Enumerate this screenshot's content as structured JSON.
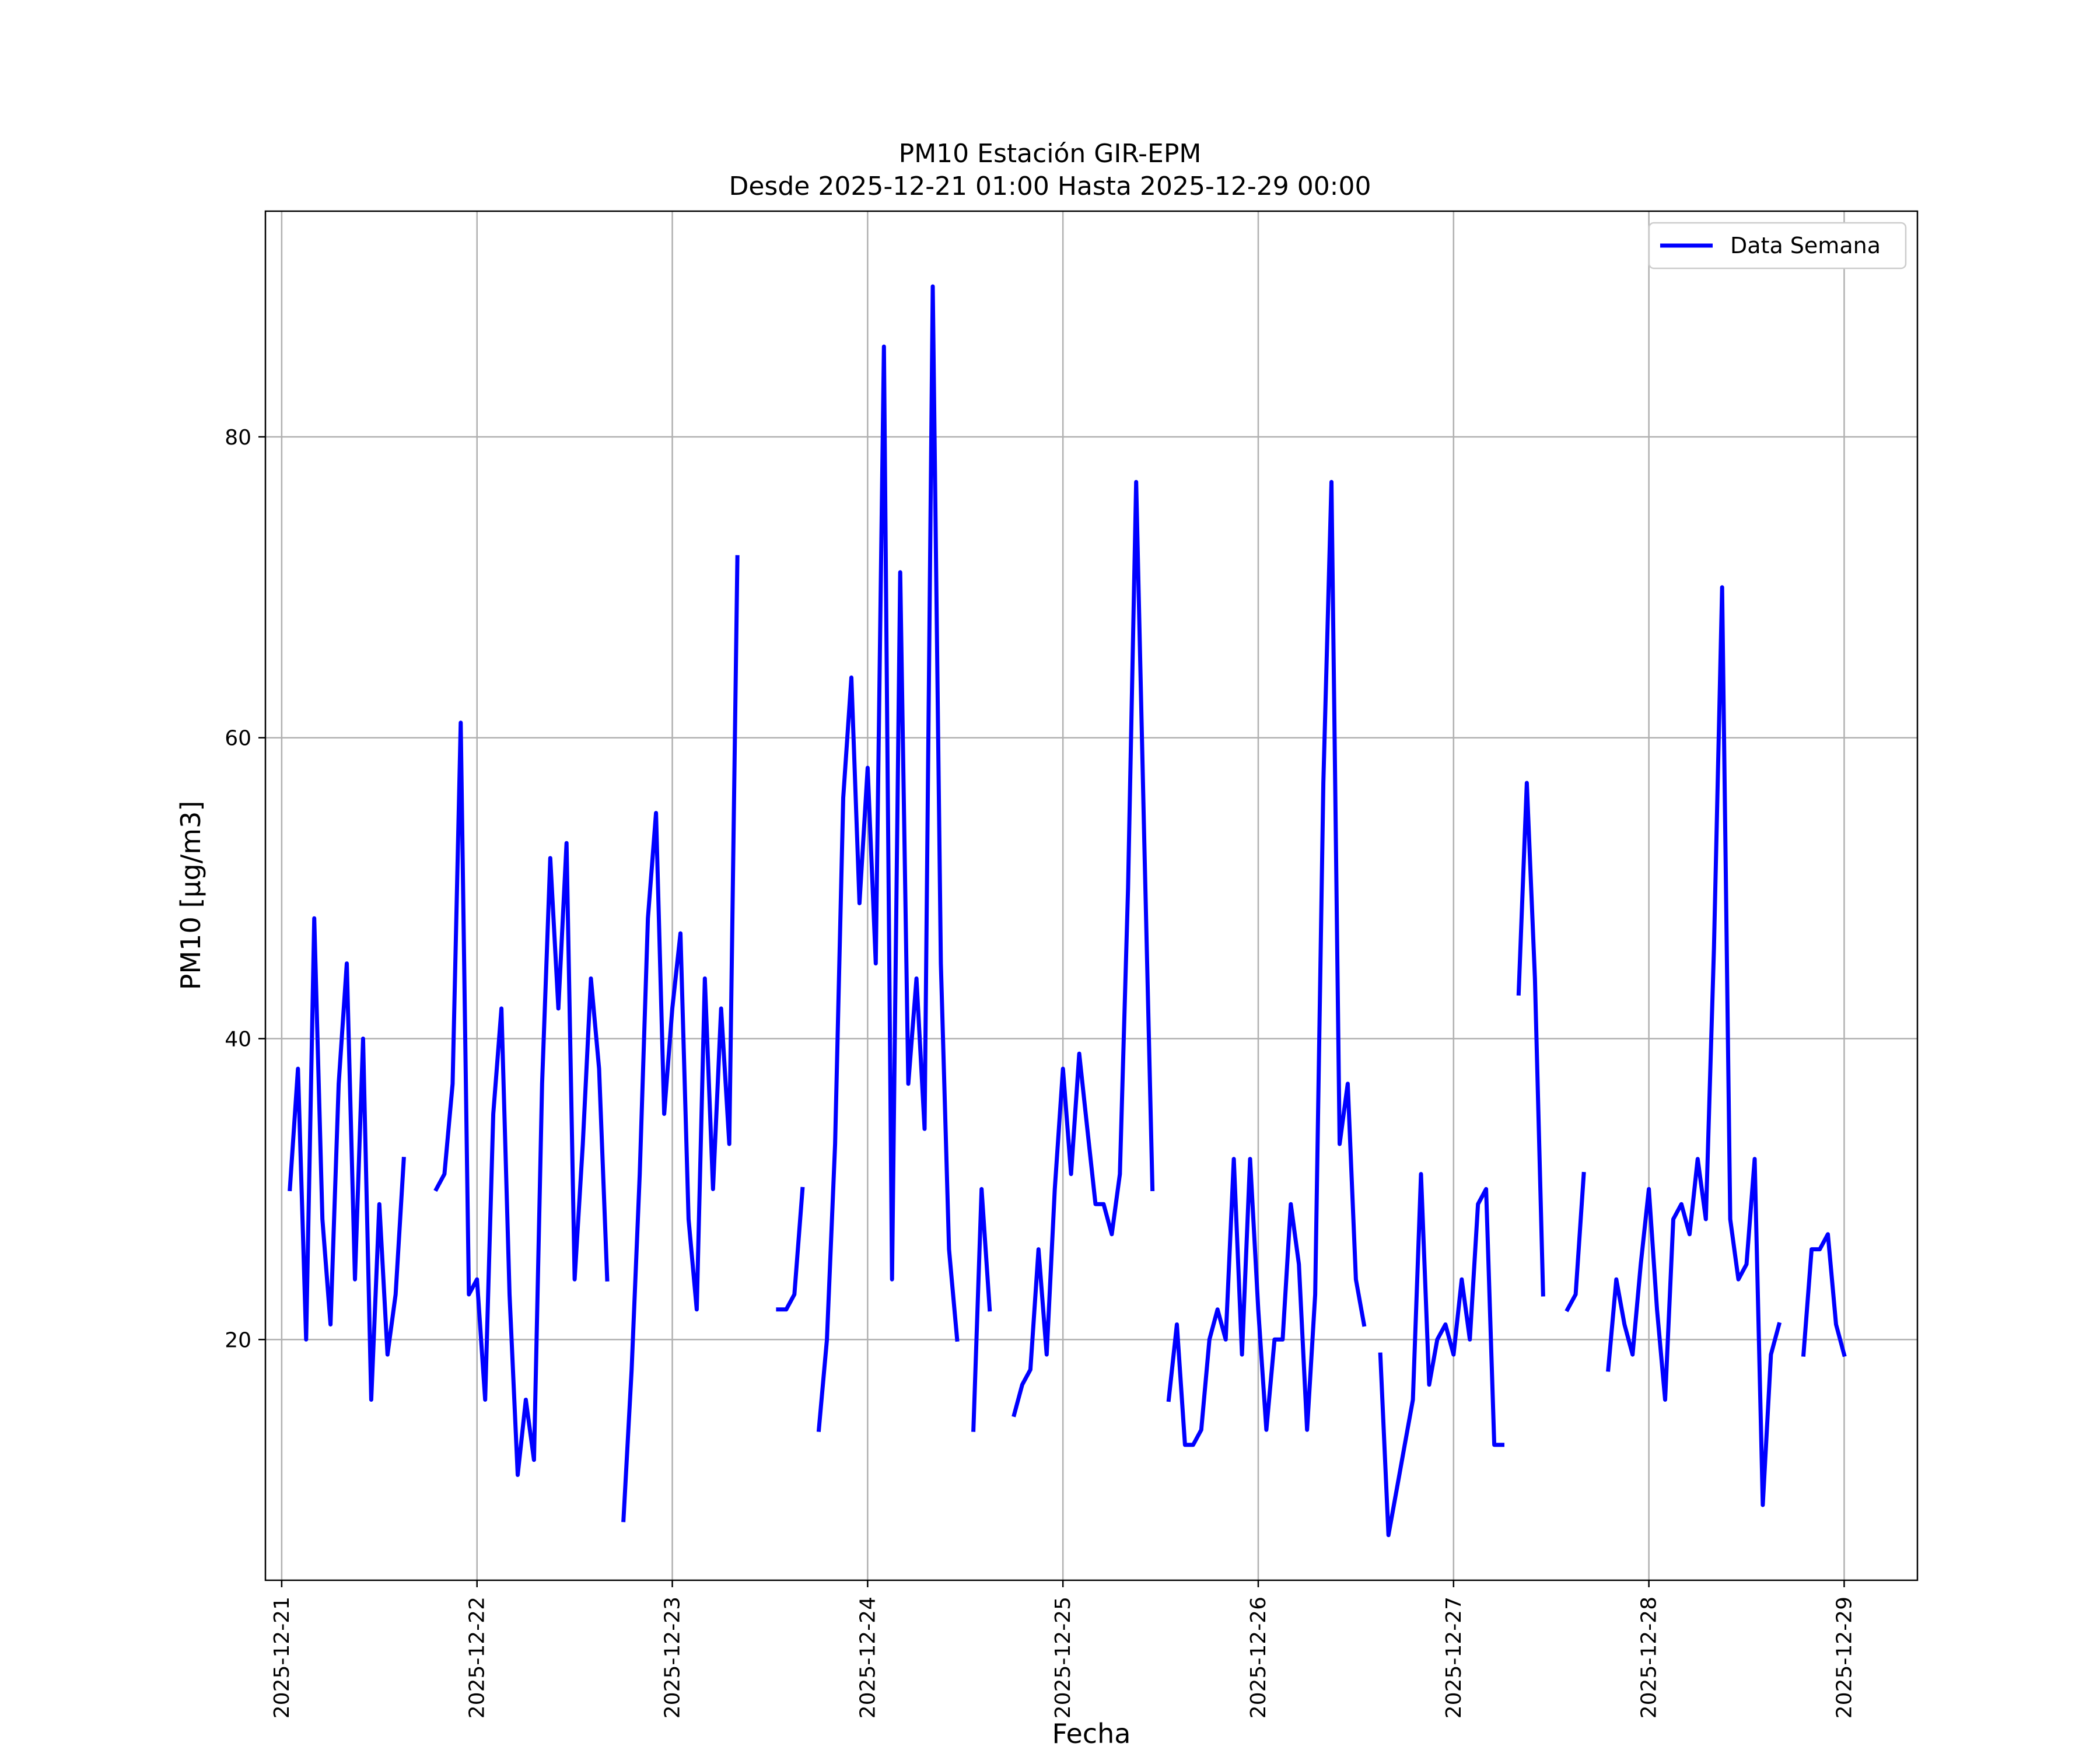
{
  "chart_data": {
    "type": "line",
    "title": "PM10 Estación GIR-EPM",
    "subtitle": "Desde 2025-12-21 01:00 Hasta 2025-12-29 00:00",
    "xlabel": "Fecha",
    "ylabel": "PM10 [μg/m3]",
    "xlim": [
      "2025-12-20 22:00",
      "2025-12-29 09:00"
    ],
    "ylim": [
      4,
      95
    ],
    "yticks": [
      20,
      40,
      60,
      80
    ],
    "xticks": [
      "2025-12-21",
      "2025-12-22",
      "2025-12-23",
      "2025-12-24",
      "2025-12-25",
      "2025-12-26",
      "2025-12-27",
      "2025-12-28",
      "2025-12-29"
    ],
    "grid": true,
    "legend_position": "top-right",
    "series_color": "#0000ff",
    "series": [
      {
        "name": "Data Semana",
        "segments": [
          [
            [
              "2025-12-21 01:00",
              30
            ],
            [
              "2025-12-21 02:00",
              38
            ],
            [
              "2025-12-21 03:00",
              20
            ],
            [
              "2025-12-21 04:00",
              48
            ],
            [
              "2025-12-21 05:00",
              28
            ],
            [
              "2025-12-21 06:00",
              21
            ],
            [
              "2025-12-21 07:00",
              37
            ],
            [
              "2025-12-21 08:00",
              45
            ],
            [
              "2025-12-21 09:00",
              24
            ],
            [
              "2025-12-21 10:00",
              40
            ],
            [
              "2025-12-21 11:00",
              16
            ],
            [
              "2025-12-21 12:00",
              29
            ],
            [
              "2025-12-21 13:00",
              19
            ],
            [
              "2025-12-21 14:00",
              23
            ],
            [
              "2025-12-21 15:00",
              32
            ]
          ],
          [
            [
              "2025-12-21 19:00",
              30
            ],
            [
              "2025-12-21 20:00",
              31
            ],
            [
              "2025-12-21 21:00",
              37
            ],
            [
              "2025-12-21 22:00",
              61
            ],
            [
              "2025-12-21 23:00",
              23
            ],
            [
              "2025-12-22 00:00",
              24
            ],
            [
              "2025-12-22 01:00",
              16
            ],
            [
              "2025-12-22 02:00",
              35
            ],
            [
              "2025-12-22 03:00",
              42
            ],
            [
              "2025-12-22 04:00",
              23
            ],
            [
              "2025-12-22 05:00",
              11
            ],
            [
              "2025-12-22 06:00",
              16
            ],
            [
              "2025-12-22 07:00",
              12
            ],
            [
              "2025-12-22 08:00",
              37
            ],
            [
              "2025-12-22 09:00",
              52
            ],
            [
              "2025-12-22 10:00",
              42
            ],
            [
              "2025-12-22 11:00",
              53
            ],
            [
              "2025-12-22 12:00",
              24
            ],
            [
              "2025-12-22 13:00",
              33
            ],
            [
              "2025-12-22 14:00",
              44
            ],
            [
              "2025-12-22 15:00",
              38
            ],
            [
              "2025-12-22 16:00",
              24
            ]
          ],
          [
            [
              "2025-12-22 18:00",
              8
            ],
            [
              "2025-12-22 19:00",
              18
            ],
            [
              "2025-12-22 20:00",
              31
            ],
            [
              "2025-12-22 21:00",
              48
            ],
            [
              "2025-12-22 22:00",
              55
            ],
            [
              "2025-12-22 23:00",
              35
            ],
            [
              "2025-12-23 00:00",
              42
            ],
            [
              "2025-12-23 01:00",
              47
            ],
            [
              "2025-12-23 02:00",
              28
            ],
            [
              "2025-12-23 03:00",
              22
            ],
            [
              "2025-12-23 04:00",
              44
            ],
            [
              "2025-12-23 05:00",
              30
            ],
            [
              "2025-12-23 06:00",
              42
            ],
            [
              "2025-12-23 07:00",
              33
            ],
            [
              "2025-12-23 08:00",
              72
            ]
          ],
          [
            [
              "2025-12-23 13:00",
              22
            ],
            [
              "2025-12-23 14:00",
              22
            ],
            [
              "2025-12-23 15:00",
              23
            ],
            [
              "2025-12-23 16:00",
              30
            ]
          ],
          [
            [
              "2025-12-23 18:00",
              14
            ],
            [
              "2025-12-23 19:00",
              20
            ],
            [
              "2025-12-23 20:00",
              33
            ],
            [
              "2025-12-23 21:00",
              56
            ],
            [
              "2025-12-23 22:00",
              64
            ],
            [
              "2025-12-23 23:00",
              49
            ],
            [
              "2025-12-24 00:00",
              58
            ],
            [
              "2025-12-24 01:00",
              45
            ],
            [
              "2025-12-24 02:00",
              86
            ],
            [
              "2025-12-24 03:00",
              24
            ],
            [
              "2025-12-24 04:00",
              71
            ],
            [
              "2025-12-24 05:00",
              37
            ],
            [
              "2025-12-24 06:00",
              44
            ],
            [
              "2025-12-24 07:00",
              34
            ],
            [
              "2025-12-24 08:00",
              90
            ],
            [
              "2025-12-24 09:00",
              45
            ],
            [
              "2025-12-24 10:00",
              26
            ],
            [
              "2025-12-24 11:00",
              20
            ]
          ],
          [
            [
              "2025-12-24 13:00",
              14
            ],
            [
              "2025-12-24 14:00",
              30
            ],
            [
              "2025-12-24 15:00",
              22
            ]
          ],
          [
            [
              "2025-12-24 18:00",
              15
            ],
            [
              "2025-12-24 19:00",
              17
            ],
            [
              "2025-12-24 20:00",
              18
            ],
            [
              "2025-12-24 21:00",
              26
            ],
            [
              "2025-12-24 22:00",
              19
            ],
            [
              "2025-12-24 23:00",
              30
            ],
            [
              "2025-12-25 00:00",
              38
            ],
            [
              "2025-12-25 01:00",
              31
            ],
            [
              "2025-12-25 02:00",
              39
            ],
            [
              "2025-12-25 03:00",
              34
            ],
            [
              "2025-12-25 04:00",
              29
            ],
            [
              "2025-12-25 05:00",
              29
            ],
            [
              "2025-12-25 06:00",
              27
            ],
            [
              "2025-12-25 07:00",
              31
            ],
            [
              "2025-12-25 08:00",
              50
            ],
            [
              "2025-12-25 09:00",
              77
            ],
            [
              "2025-12-25 10:00",
              53
            ],
            [
              "2025-12-25 11:00",
              30
            ]
          ],
          [
            [
              "2025-12-25 13:00",
              16
            ],
            [
              "2025-12-25 14:00",
              21
            ],
            [
              "2025-12-25 15:00",
              13
            ],
            [
              "2025-12-25 16:00",
              13
            ],
            [
              "2025-12-25 17:00",
              14
            ],
            [
              "2025-12-25 18:00",
              20
            ],
            [
              "2025-12-25 19:00",
              22
            ],
            [
              "2025-12-25 20:00",
              20
            ],
            [
              "2025-12-25 21:00",
              32
            ],
            [
              "2025-12-25 22:00",
              19
            ],
            [
              "2025-12-25 23:00",
              32
            ],
            [
              "2025-12-26 00:00",
              22
            ],
            [
              "2025-12-26 01:00",
              14
            ],
            [
              "2025-12-26 02:00",
              20
            ],
            [
              "2025-12-26 03:00",
              20
            ],
            [
              "2025-12-26 04:00",
              29
            ],
            [
              "2025-12-26 05:00",
              25
            ],
            [
              "2025-12-26 06:00",
              14
            ],
            [
              "2025-12-26 07:00",
              23
            ],
            [
              "2025-12-26 08:00",
              57
            ],
            [
              "2025-12-26 09:00",
              77
            ],
            [
              "2025-12-26 10:00",
              33
            ],
            [
              "2025-12-26 11:00",
              37
            ],
            [
              "2025-12-26 12:00",
              24
            ],
            [
              "2025-12-26 13:00",
              21
            ]
          ],
          [
            [
              "2025-12-26 15:00",
              19
            ],
            [
              "2025-12-26 16:00",
              7
            ],
            [
              "2025-12-26 17:00",
              10
            ],
            [
              "2025-12-26 18:00",
              13
            ],
            [
              "2025-12-26 19:00",
              16
            ],
            [
              "2025-12-26 20:00",
              31
            ],
            [
              "2025-12-26 21:00",
              17
            ],
            [
              "2025-12-26 22:00",
              20
            ],
            [
              "2025-12-26 23:00",
              21
            ],
            [
              "2025-12-27 00:00",
              19
            ],
            [
              "2025-12-27 01:00",
              24
            ],
            [
              "2025-12-27 02:00",
              20
            ],
            [
              "2025-12-27 03:00",
              29
            ],
            [
              "2025-12-27 04:00",
              30
            ],
            [
              "2025-12-27 05:00",
              13
            ],
            [
              "2025-12-27 06:00",
              13
            ]
          ],
          [
            [
              "2025-12-27 08:00",
              43
            ],
            [
              "2025-12-27 09:00",
              57
            ],
            [
              "2025-12-27 10:00",
              44
            ],
            [
              "2025-12-27 11:00",
              23
            ]
          ],
          [
            [
              "2025-12-27 14:00",
              22
            ],
            [
              "2025-12-27 15:00",
              23
            ],
            [
              "2025-12-27 16:00",
              31
            ]
          ],
          [
            [
              "2025-12-27 19:00",
              18
            ],
            [
              "2025-12-27 20:00",
              24
            ],
            [
              "2025-12-27 21:00",
              21
            ],
            [
              "2025-12-27 22:00",
              19
            ],
            [
              "2025-12-27 23:00",
              25
            ],
            [
              "2025-12-28 00:00",
              30
            ],
            [
              "2025-12-28 01:00",
              22
            ],
            [
              "2025-12-28 02:00",
              16
            ],
            [
              "2025-12-28 03:00",
              28
            ],
            [
              "2025-12-28 04:00",
              29
            ],
            [
              "2025-12-28 05:00",
              27
            ],
            [
              "2025-12-28 06:00",
              32
            ],
            [
              "2025-12-28 07:00",
              28
            ],
            [
              "2025-12-28 08:00",
              46
            ],
            [
              "2025-12-28 09:00",
              70
            ],
            [
              "2025-12-28 10:00",
              28
            ],
            [
              "2025-12-28 11:00",
              24
            ],
            [
              "2025-12-28 12:00",
              25
            ],
            [
              "2025-12-28 13:00",
              32
            ],
            [
              "2025-12-28 14:00",
              9
            ],
            [
              "2025-12-28 15:00",
              19
            ],
            [
              "2025-12-28 16:00",
              21
            ]
          ],
          [
            [
              "2025-12-28 19:00",
              19
            ],
            [
              "2025-12-28 20:00",
              26
            ],
            [
              "2025-12-28 21:00",
              26
            ],
            [
              "2025-12-28 22:00",
              27
            ],
            [
              "2025-12-28 23:00",
              21
            ],
            [
              "2025-12-29 00:00",
              19
            ]
          ]
        ]
      }
    ]
  }
}
